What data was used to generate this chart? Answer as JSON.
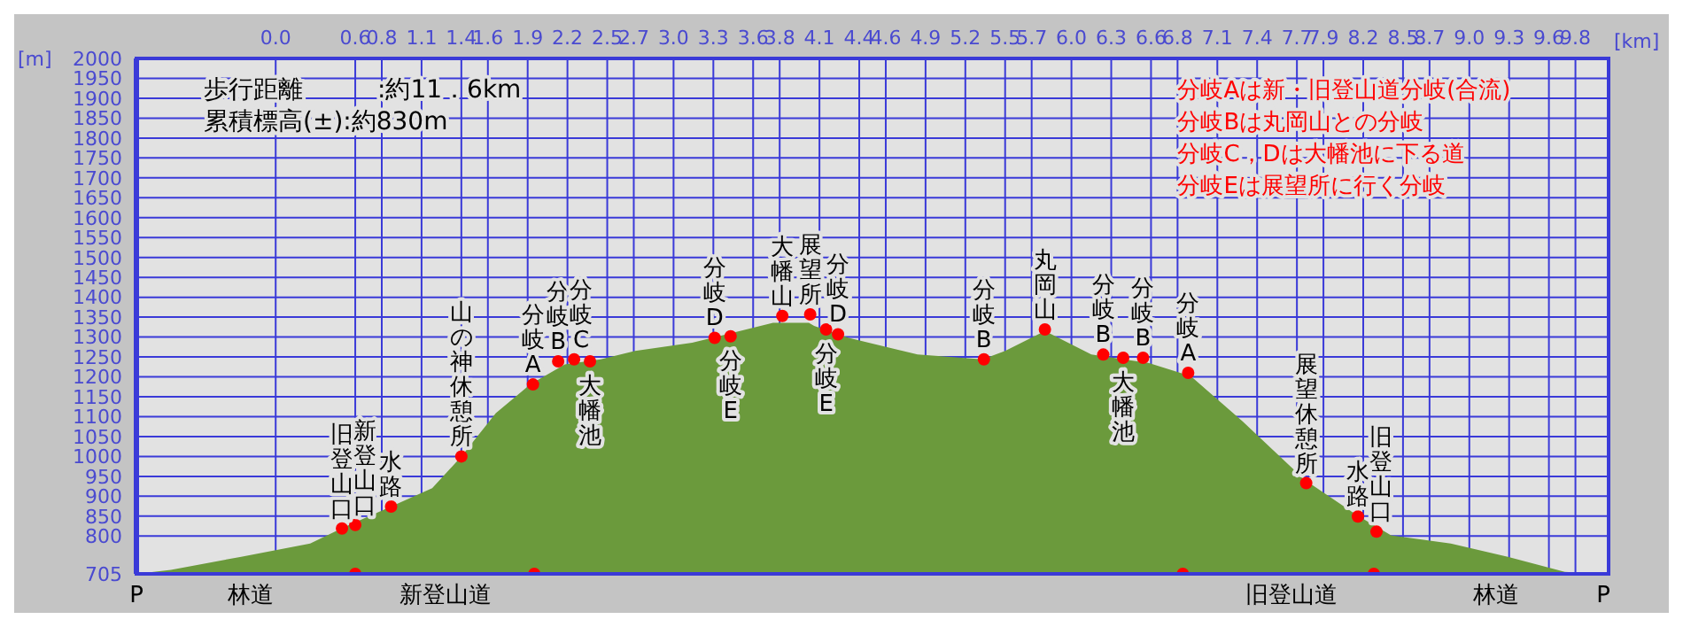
{
  "chart_data": {
    "type": "area",
    "xlabel": "[km]",
    "ylabel": "[m]",
    "xlim": [
      -1.05,
      10.05
    ],
    "ylim": [
      705,
      2000
    ],
    "xticks": [
      {
        "value": 0,
        "label": "0.0"
      },
      0.6,
      0.8,
      1.1,
      1.4,
      1.6,
      1.9,
      2.2,
      2.5,
      2.7,
      {
        "value": 3,
        "label": "3.0"
      },
      3.3,
      3.6,
      3.8,
      4.1,
      4.4,
      4.6,
      4.9,
      5.2,
      5.5,
      5.7,
      {
        "value": 6,
        "label": "6.0"
      },
      6.3,
      6.6,
      6.8,
      7.1,
      7.4,
      7.7,
      7.9,
      8.2,
      8.5,
      8.7,
      {
        "value": 9,
        "label": "9.0"
      },
      9.3,
      9.6,
      9.8
    ],
    "yticks": [
      705,
      800,
      850,
      900,
      950,
      1000,
      1050,
      1100,
      1150,
      1200,
      1250,
      1300,
      1350,
      1400,
      1450,
      1500,
      1550,
      1600,
      1650,
      1700,
      1750,
      1800,
      1850,
      1900,
      1950,
      2000
    ],
    "grid": true,
    "series": [
      {
        "color": "#6b9a3c",
        "x": [
          -1.05,
          -0.79,
          -0.26,
          0.26,
          0.52,
          0.87,
          1.18,
          1.4,
          1.66,
          1.92,
          2.18,
          2.45,
          2.71,
          3.14,
          3.4,
          3.75,
          4.02,
          4.06,
          4.32,
          4.84,
          5.33,
          5.5,
          5.8,
          6.15,
          6.58,
          6.9,
          7.29,
          7.76,
          8.15,
          8.41,
          8.86,
          9.29,
          9.72,
          10.01
        ],
        "values": [
          705,
          715,
          748,
          781,
          823,
          874,
          920,
          1000,
          1109,
          1181,
          1231,
          1244,
          1265,
          1286,
          1307,
          1336,
          1336,
          1328,
          1298,
          1256,
          1244,
          1265,
          1315,
          1256,
          1235,
          1202,
          1088,
          941,
          853,
          802,
          781,
          748,
          710,
          705
        ]
      },
      {
        "type": "scatter",
        "marker": "circle",
        "color": "#ff0000",
        "x": [
          0.5,
          0.6,
          0.87,
          1.4,
          1.94,
          2.13,
          2.25,
          2.37,
          3.31,
          3.43,
          3.82,
          4.03,
          4.15,
          4.24,
          5.34,
          5.8,
          6.24,
          6.39,
          6.54,
          6.88,
          7.77,
          8.16,
          8.3
        ],
        "values": [
          819,
          828,
          874,
          1000,
          1181,
          1239,
          1244,
          1239,
          1298,
          1302,
          1353,
          1357,
          1319,
          1307,
          1244,
          1319,
          1256,
          1248,
          1248,
          1210,
          933,
          849,
          811
        ]
      },
      {
        "type": "scatter",
        "marker": "circle",
        "color": "#ff0000",
        "x": [
          0.6,
          1.95,
          6.84,
          8.28
        ],
        "values": [
          705,
          705,
          705,
          705
        ]
      }
    ],
    "annotations": [
      "歩行距離　　　:約11．6km",
      "累積標高(±):約830m",
      "分岐Aは新・旧登山道分岐(合流)",
      "分岐Bは丸岡山との分岐",
      "分岐C，Dは大幡池に下る道",
      "分岐Eは展望所に行く分岐",
      {
        "text": "旧登山口",
        "x": 0.5,
        "y": 819
      },
      {
        "text": "新登山口",
        "x": 0.6,
        "y": 828
      },
      {
        "text": "水路",
        "x": 0.87,
        "y": 874
      },
      {
        "text": "山の神休憩所",
        "x": 1.4,
        "y": 1000
      },
      {
        "text": "分岐A",
        "x": 1.94,
        "y": 1181
      },
      {
        "text": "分岐B",
        "x": 2.13,
        "y": 1239
      },
      {
        "text": "分岐C",
        "x": 2.25,
        "y": 1244
      },
      {
        "text": "大幡池",
        "x": 2.37,
        "y": 1239
      },
      {
        "text": "分岐D",
        "x": 3.31,
        "y": 1298
      },
      {
        "text": "分岐E",
        "x": 3.43,
        "y": 1302
      },
      {
        "text": "大幡山",
        "x": 3.82,
        "y": 1353
      },
      {
        "text": "展望所",
        "x": 4.03,
        "y": 1357
      },
      {
        "text": "分岐E",
        "x": 4.15,
        "y": 1319
      },
      {
        "text": "分岐D",
        "x": 4.24,
        "y": 1307
      },
      {
        "text": "分岐B",
        "x": 5.34,
        "y": 1244
      },
      {
        "text": "丸岡山",
        "x": 5.8,
        "y": 1319
      },
      {
        "text": "分岐B",
        "x": 6.24,
        "y": 1256
      },
      {
        "text": "大幡池",
        "x": 6.39,
        "y": 1248
      },
      {
        "text": "分岐B",
        "x": 6.54,
        "y": 1248
      },
      {
        "text": "分岐A",
        "x": 6.88,
        "y": 1210
      },
      {
        "text": "展望休憩所",
        "x": 7.77,
        "y": 933
      },
      {
        "text": "水路",
        "x": 8.16,
        "y": 849
      },
      {
        "text": "旧登山口",
        "x": 8.3,
        "y": 811
      },
      {
        "text": "P",
        "x": -1.05,
        "y": 705
      },
      {
        "text": "林道",
        "x": -0.19,
        "y": 705
      },
      {
        "text": "新登山道",
        "x": 1.28,
        "y": 705
      },
      {
        "text": "旧登山道",
        "x": 7.66,
        "y": 705
      },
      {
        "text": "林道",
        "x": 9.2,
        "y": 705
      },
      {
        "text": "P",
        "x": 10.01,
        "y": 705
      }
    ]
  }
}
